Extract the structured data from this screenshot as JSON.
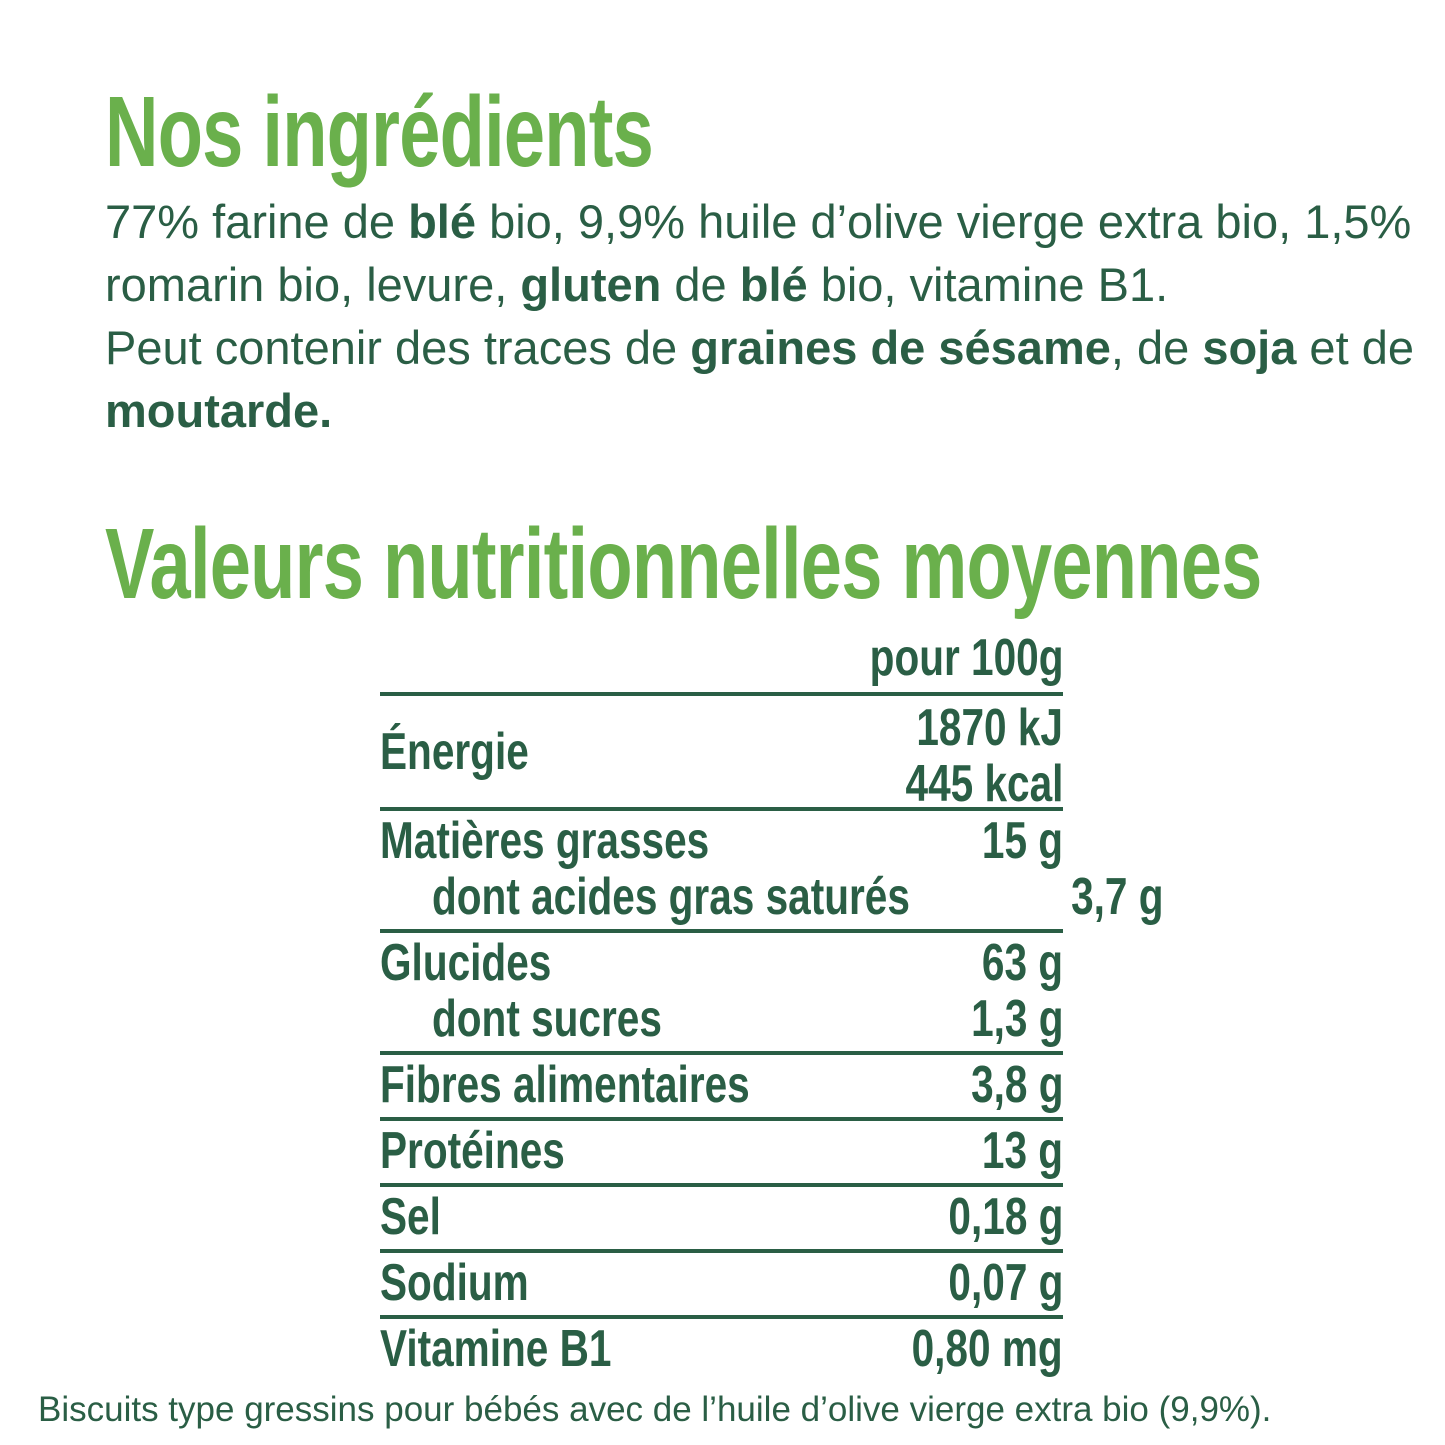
{
  "ingredients_title": "Nos ingrédients",
  "ingredients": [
    {
      "t": "77% farine de ",
      "b": false
    },
    {
      "t": "blé",
      "b": true
    },
    {
      "t": " bio, 9,9% huile d’olive vierge extra bio, 1,5% romarin bio, levure, ",
      "b": false
    },
    {
      "t": "gluten",
      "b": true
    },
    {
      "t": " de ",
      "b": false
    },
    {
      "t": "blé",
      "b": true
    },
    {
      "t": " bio, vitamine B1.",
      "b": false
    }
  ],
  "traces": [
    {
      "t": "Peut contenir des traces de ",
      "b": false
    },
    {
      "t": "graines de sésame",
      "b": true
    },
    {
      "t": ", de ",
      "b": false
    },
    {
      "t": "soja",
      "b": true
    },
    {
      "t": " et de ",
      "b": false
    },
    {
      "t": "moutarde.",
      "b": true
    }
  ],
  "nutrition_title": "Valeurs nutritionnelles moyennes",
  "column_header": "pour 100g",
  "energy": {
    "label": "Énergie",
    "kj": "1870 kJ",
    "kcal": "445 kcal"
  },
  "rows": [
    [
      {
        "label": "Matières grasses",
        "value": "15 g"
      },
      {
        "label": "dont acides gras saturés",
        "value": "3,7 g",
        "sub": true
      }
    ],
    [
      {
        "label": "Glucides",
        "value": "63 g"
      },
      {
        "label": "dont sucres",
        "value": "1,3 g",
        "sub": true
      }
    ],
    [
      {
        "label": "Fibres alimentaires",
        "value": "3,8 g"
      }
    ],
    [
      {
        "label": "Protéines",
        "value": "13 g"
      }
    ],
    [
      {
        "label": "Sel",
        "value": "0,18 g"
      }
    ],
    [
      {
        "label": "Sodium",
        "value": "0,07 g"
      }
    ],
    [
      {
        "label": "Vitamine B1",
        "value": "0,80 mg"
      }
    ]
  ],
  "footer": "Biscuits type gressins pour bébés avec de l’huile d’olive vierge extra bio (9,9%).",
  "colors": {
    "title_green": "#6ab04c",
    "text_green": "#2a5e45"
  }
}
